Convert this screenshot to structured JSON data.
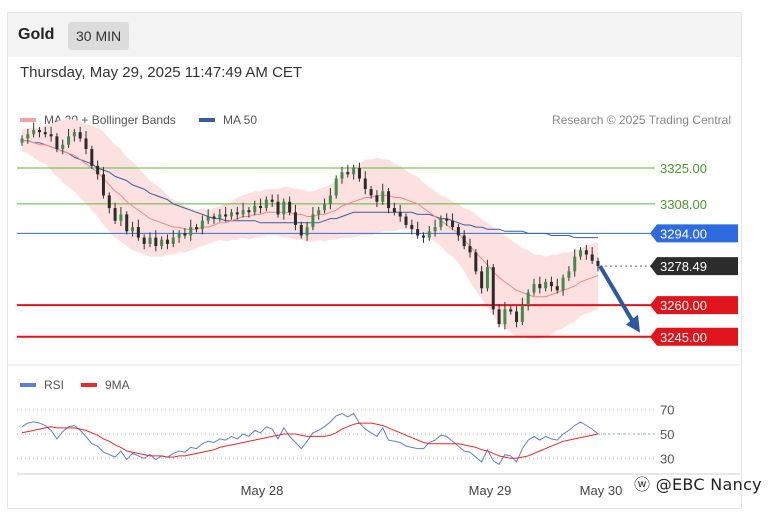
{
  "header": {
    "symbol": "Gold",
    "timeframe": "30 MIN"
  },
  "timestamp": "Thursday, May 29, 2025 11:47:49 AM CET",
  "legend": {
    "ma20": {
      "label": "MA 20 + Bollinger Bands",
      "color": "#f4a3a3"
    },
    "ma50": {
      "label": "MA 50",
      "color": "#3a5fa0"
    },
    "rsi": {
      "label": "RSI",
      "color": "#5b7fd6"
    },
    "rsi_ma": {
      "label": "9MA",
      "color": "#e52b2b"
    }
  },
  "credit": "Research © 2025 Trading Central",
  "watermark": "@EBC Nancy",
  "chart_data": [
    {
      "type": "candlestick",
      "title": "Gold 30 MIN",
      "x_ticks": [
        "May 28",
        "May 29",
        "May 30"
      ],
      "ylim": [
        3234,
        3343
      ],
      "levels": [
        {
          "label": "3325.00",
          "value": 3325.0,
          "style": "resistance",
          "color": "#5fb93a"
        },
        {
          "label": "3308.00",
          "value": 3308.0,
          "style": "resistance",
          "color": "#5fb93a"
        },
        {
          "label": "3294.00",
          "value": 3294.0,
          "style": "pivot",
          "color": "#2f6be0"
        },
        {
          "label": "3278.49",
          "value": 3278.49,
          "style": "last",
          "color": "#2c2c2c"
        },
        {
          "label": "3260.00",
          "value": 3260.0,
          "style": "support",
          "color": "#e0151b"
        },
        {
          "label": "3245.00",
          "value": 3245.0,
          "style": "support",
          "color": "#e0151b"
        }
      ],
      "forecast": {
        "direction": "down",
        "from": 3278.5,
        "to": 3247,
        "color": "#2c5aa0"
      },
      "close": [
        3339,
        3341,
        3343,
        3342,
        3341,
        3340,
        3334,
        3336,
        3340,
        3342,
        3339,
        3334,
        3326,
        3322,
        3312,
        3306,
        3300,
        3303,
        3295,
        3297,
        3292,
        3289,
        3292,
        3288,
        3291,
        3289,
        3292,
        3294,
        3293,
        3297,
        3296,
        3300,
        3302,
        3301,
        3303,
        3302,
        3304,
        3303,
        3305,
        3304,
        3307,
        3306,
        3310,
        3309,
        3303,
        3309,
        3304,
        3298,
        3293,
        3297,
        3303,
        3305,
        3308,
        3312,
        3320,
        3323,
        3322,
        3325,
        3320,
        3315,
        3312,
        3309,
        3314,
        3306,
        3304,
        3302,
        3298,
        3296,
        3293,
        3292,
        3295,
        3297,
        3301,
        3300,
        3297,
        3293,
        3288,
        3285,
        3276,
        3268,
        3278,
        3258,
        3251,
        3258,
        3257,
        3252,
        3260,
        3266,
        3270,
        3268,
        3271,
        3269,
        3267,
        3273,
        3276,
        3283,
        3286,
        3284,
        3281,
        3278.49
      ],
      "ma20": [
        3338,
        3338,
        3337,
        3336,
        3336,
        3335,
        3334,
        3333,
        3332,
        3331,
        3329,
        3327,
        3325,
        3323,
        3320,
        3317,
        3314,
        3312,
        3309,
        3307,
        3305,
        3303,
        3301,
        3300,
        3299,
        3298,
        3297,
        3297,
        3296,
        3296,
        3296,
        3297,
        3297,
        3298,
        3299,
        3299,
        3300,
        3301,
        3302,
        3302,
        3303,
        3303,
        3304,
        3304,
        3304,
        3304,
        3304,
        3303,
        3303,
        3302,
        3302,
        3303,
        3303,
        3304,
        3305,
        3307,
        3308,
        3309,
        3310,
        3311,
        3311,
        3312,
        3312,
        3312,
        3311,
        3311,
        3310,
        3309,
        3308,
        3306,
        3304,
        3302,
        3300,
        3298,
        3296,
        3294,
        3291,
        3288,
        3285,
        3282,
        3279,
        3276,
        3273,
        3271,
        3269,
        3267,
        3266,
        3265,
        3264,
        3264,
        3264,
        3265,
        3266,
        3267,
        3268,
        3269,
        3271,
        3272,
        3273,
        3274
      ],
      "ma50": [
        3338,
        3338,
        3337,
        3337,
        3336,
        3335,
        3334,
        3333,
        3332,
        3330,
        3329,
        3328,
        3327,
        3325,
        3324,
        3323,
        3321,
        3320,
        3319,
        3317,
        3316,
        3315,
        3313,
        3312,
        3311,
        3310,
        3308,
        3307,
        3306,
        3305,
        3304,
        3303,
        3302,
        3301,
        3301,
        3300,
        3300,
        3300,
        3300,
        3300,
        3300,
        3299,
        3299,
        3299,
        3299,
        3299,
        3299,
        3299,
        3299,
        3299,
        3299,
        3299,
        3300,
        3301,
        3301,
        3302,
        3303,
        3304,
        3304,
        3304,
        3304,
        3304,
        3304,
        3304,
        3304,
        3304,
        3304,
        3304,
        3303,
        3303,
        3303,
        3302,
        3301,
        3301,
        3300,
        3299,
        3298,
        3298,
        3297,
        3297,
        3296,
        3296,
        3296,
        3295,
        3295,
        3295,
        3295,
        3294,
        3294,
        3294,
        3294,
        3293,
        3293,
        3293,
        3293,
        3292,
        3292,
        3292,
        3292,
        3292
      ],
      "bb_width": [
        5,
        6,
        7,
        8,
        9,
        11,
        13,
        15,
        16,
        17,
        18,
        19,
        20,
        21,
        22,
        22,
        22,
        22,
        21,
        21,
        20,
        19,
        18,
        17,
        16,
        14,
        13,
        12,
        11,
        10,
        9,
        9,
        8,
        8,
        8,
        9,
        9,
        10,
        10,
        11,
        11,
        11,
        11,
        11,
        11,
        12,
        12,
        12,
        12,
        12,
        12,
        12,
        13,
        13,
        14,
        15,
        16,
        17,
        17,
        18,
        18,
        18,
        17,
        17,
        16,
        15,
        14,
        13,
        13,
        12,
        12,
        12,
        12,
        13,
        13,
        14,
        15,
        17,
        18,
        19,
        20,
        21,
        22,
        22,
        22,
        22,
        21,
        21,
        20,
        20,
        19,
        19,
        18,
        18,
        17,
        17,
        16,
        16,
        16,
        16
      ]
    },
    {
      "type": "line",
      "title": "RSI",
      "ylim": [
        22,
        78
      ],
      "y_ticks": [
        70,
        50,
        30
      ],
      "series": [
        {
          "name": "RSI",
          "values": [
            56,
            59,
            60,
            59,
            57,
            53,
            46,
            52,
            56,
            57,
            53,
            48,
            42,
            40,
            35,
            33,
            31,
            36,
            29,
            34,
            32,
            30,
            33,
            29,
            32,
            31,
            34,
            36,
            35,
            39,
            38,
            42,
            44,
            43,
            46,
            45,
            48,
            46,
            50,
            48,
            53,
            51,
            56,
            54,
            46,
            55,
            48,
            43,
            38,
            44,
            51,
            53,
            56,
            60,
            65,
            67,
            64,
            67,
            59,
            54,
            51,
            48,
            55,
            45,
            44,
            43,
            40,
            39,
            38,
            38,
            43,
            45,
            49,
            48,
            44,
            40,
            36,
            35,
            31,
            27,
            37,
            28,
            25,
            33,
            32,
            27,
            38,
            45,
            48,
            45,
            48,
            46,
            45,
            50,
            53,
            57,
            60,
            57,
            54,
            50
          ]
        },
        {
          "name": "9MA",
          "values": [
            51,
            52,
            53,
            54,
            55,
            56,
            55,
            55,
            55,
            55,
            54,
            53,
            51,
            49,
            46,
            44,
            41,
            39,
            36,
            35,
            34,
            33,
            32,
            32,
            32,
            31,
            31,
            32,
            32,
            33,
            34,
            35,
            36,
            37,
            39,
            40,
            41,
            42,
            43,
            44,
            45,
            46,
            47,
            48,
            49,
            50,
            50,
            50,
            49,
            48,
            48,
            48,
            48,
            49,
            51,
            54,
            56,
            58,
            59,
            59,
            59,
            58,
            57,
            55,
            53,
            51,
            49,
            47,
            45,
            43,
            42,
            42,
            42,
            42,
            42,
            42,
            41,
            40,
            39,
            37,
            36,
            34,
            32,
            31,
            30,
            30,
            31,
            32,
            34,
            36,
            38,
            40,
            42,
            44,
            45,
            46,
            47,
            48,
            49,
            50
          ]
        }
      ]
    }
  ]
}
